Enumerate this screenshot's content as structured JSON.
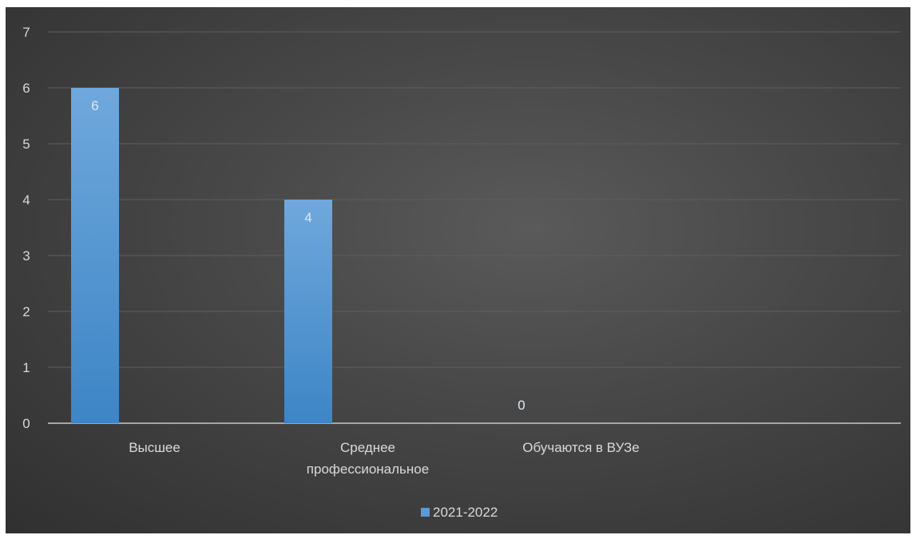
{
  "chart_data": {
    "type": "bar",
    "categories": [
      "Высшее",
      "Среднее профессиональное",
      "Обучаются в ВУЗе",
      ""
    ],
    "category_lines": [
      [
        "Высшее"
      ],
      [
        "Среднее",
        "профессиональное"
      ],
      [
        "Обучаются в ВУЗе"
      ],
      [
        ""
      ]
    ],
    "series": [
      {
        "name": "2021-2022",
        "values": [
          6,
          4,
          0,
          null
        ],
        "color": "#5b9bd5"
      }
    ],
    "data_labels": [
      "6",
      "4",
      "0",
      ""
    ],
    "ylim": [
      0,
      7
    ],
    "yticks": [
      "0",
      "1",
      "2",
      "3",
      "4",
      "5",
      "6",
      "7"
    ],
    "grid": true,
    "legend_position": "bottom",
    "background": "#404040",
    "title": "",
    "xlabel": "",
    "ylabel": ""
  }
}
